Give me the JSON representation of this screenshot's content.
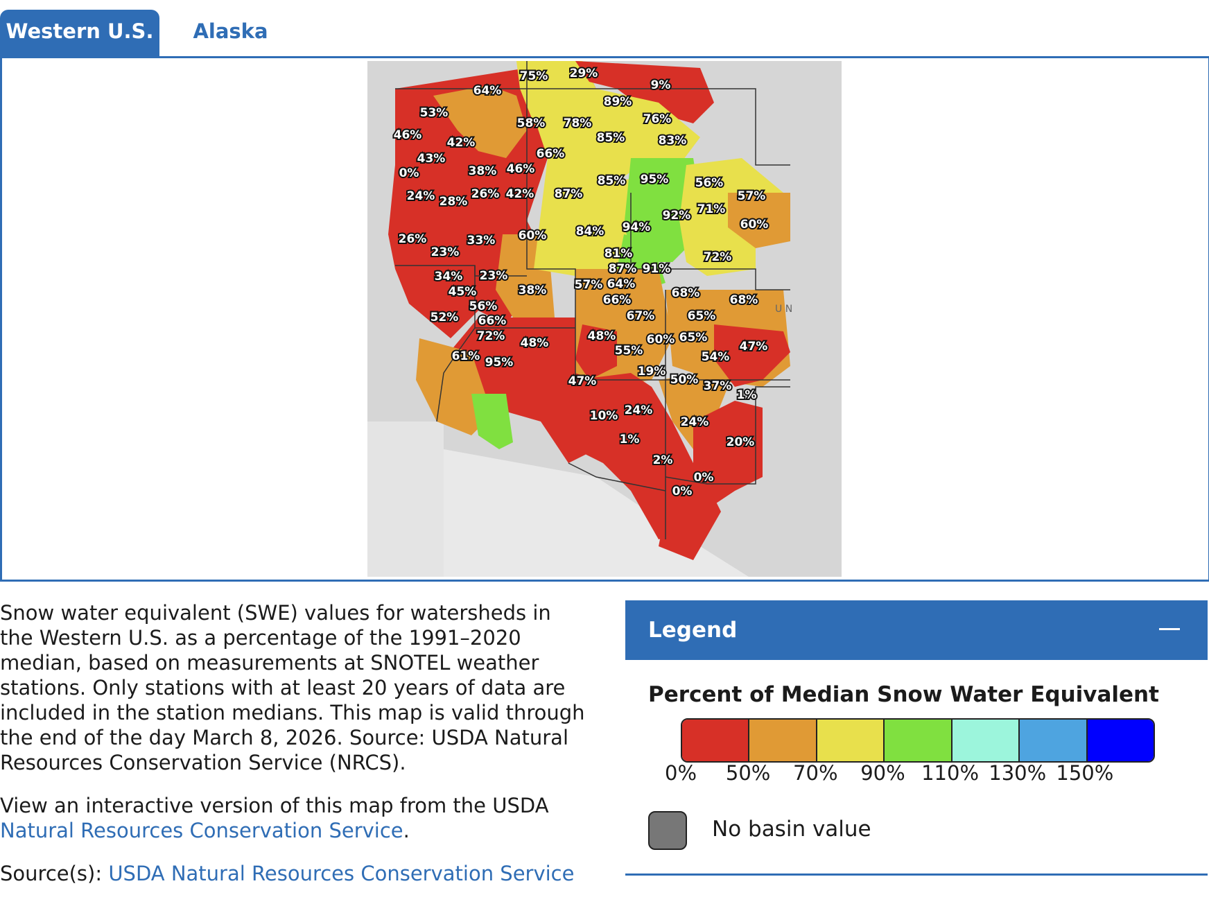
{
  "tabs": [
    {
      "label": "Western U.S.",
      "active": true
    },
    {
      "label": "Alaska",
      "active": false
    }
  ],
  "map": {
    "basin_labels": [
      "75%",
      "29%",
      "64%",
      "9%",
      "89%",
      "53%",
      "58%",
      "78%",
      "76%",
      "46%",
      "42%",
      "85%",
      "83%",
      "43%",
      "66%",
      "0%",
      "38%",
      "46%",
      "85%",
      "95%",
      "56%",
      "24%",
      "28%",
      "26%",
      "42%",
      "87%",
      "57%",
      "71%",
      "92%",
      "60%",
      "94%",
      "84%",
      "26%",
      "33%",
      "60%",
      "23%",
      "81%",
      "72%",
      "87%",
      "91%",
      "34%",
      "23%",
      "45%",
      "38%",
      "57%",
      "64%",
      "68%",
      "68%",
      "66%",
      "56%",
      "52%",
      "67%",
      "65%",
      "66%",
      "72%",
      "48%",
      "48%",
      "60%",
      "65%",
      "47%",
      "61%",
      "95%",
      "55%",
      "54%",
      "19%",
      "50%",
      "47%",
      "37%",
      "1%",
      "24%",
      "10%",
      "24%",
      "1%",
      "20%",
      "2%",
      "0%",
      "0%"
    ],
    "partial_text": "U N"
  },
  "description": {
    "paragraph1": "Snow water equivalent (SWE) values for watersheds in the Western U.S. as a percentage of the 1991–2020 median, based on measurements at SNOTEL weather stations. Only stations with at least 20 years of data are included in the station medians. This map is valid through the end of the day March 8, 2026. Source: USDA Natural Resources Conservation Service (NRCS).",
    "paragraph2_prefix": "View an interactive version of this map from the USDA ",
    "paragraph2_link": "Natural Resources Conservation Service",
    "paragraph2_suffix": ".",
    "sources_prefix": "Source(s): ",
    "sources_link": "USDA Natural Resources Conservation Service"
  },
  "legend": {
    "header": "Legend",
    "title": "Percent of Median Snow Water Equivalent",
    "colors": [
      "#d73027",
      "#e09a35",
      "#e8e04c",
      "#80e040",
      "#9cf5dc",
      "#4ea4e0",
      "#0000ff"
    ],
    "ticks": [
      "0%",
      "50%",
      "70%",
      "90%",
      "110%",
      "130%",
      "150%"
    ],
    "no_basin_label": "No basin value",
    "no_basin_color": "#777777"
  }
}
